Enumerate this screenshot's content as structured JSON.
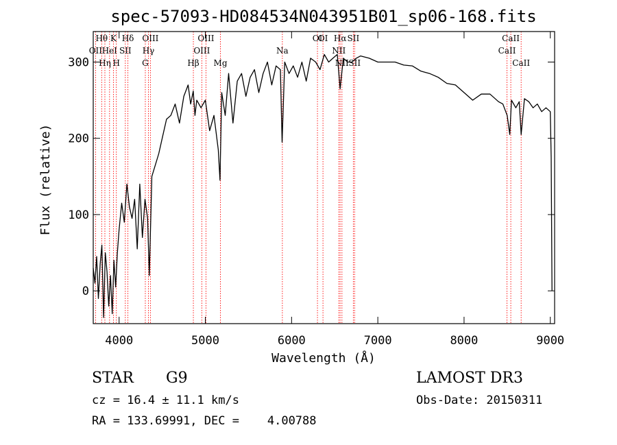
{
  "chart_data": {
    "type": "line",
    "title": "spec-57093-HD084534N043951B01_sp06-168.fits",
    "xlabel": "Wavelength (Å)",
    "ylabel": "Flux (relative)",
    "xlim": [
      3700,
      9050
    ],
    "ylim": [
      -43,
      340
    ],
    "x_ticks": [
      4000,
      5000,
      6000,
      7000,
      8000,
      9000
    ],
    "y_ticks": [
      0,
      100,
      200,
      300
    ],
    "grid": false,
    "series": [
      {
        "x": [
          3700,
          3720,
          3740,
          3760,
          3780,
          3800,
          3820,
          3840,
          3860,
          3880,
          3900,
          3920,
          3940,
          3960,
          3980,
          4000,
          4030,
          4060,
          4090,
          4120,
          4150,
          4180,
          4210,
          4240,
          4270,
          4300,
          4330,
          4350,
          4380,
          4420,
          4460,
          4500,
          4550,
          4600,
          4650,
          4700,
          4750,
          4800,
          4830,
          4860,
          4880,
          4900,
          4950,
          5000,
          5050,
          5100,
          5150,
          5170,
          5190,
          5230,
          5270,
          5320,
          5370,
          5420,
          5470,
          5520,
          5570,
          5620,
          5670,
          5720,
          5770,
          5820,
          5870,
          5890,
          5920,
          5970,
          6020,
          6070,
          6120,
          6170,
          6220,
          6280,
          6330,
          6380,
          6430,
          6480,
          6530,
          6563,
          6600,
          6650,
          6700,
          6750,
          6800,
          6900,
          7000,
          7100,
          7200,
          7300,
          7400,
          7500,
          7600,
          7700,
          7800,
          7900,
          8000,
          8100,
          8200,
          8300,
          8400,
          8450,
          8500,
          8530,
          8550,
          8600,
          8640,
          8662,
          8700,
          8750,
          8800,
          8850,
          8900,
          8950,
          9000,
          9010,
          9020
        ],
        "y": [
          30,
          10,
          45,
          -10,
          35,
          60,
          -35,
          50,
          25,
          -20,
          20,
          -30,
          40,
          5,
          50,
          80,
          115,
          90,
          140,
          110,
          95,
          120,
          55,
          140,
          70,
          120,
          95,
          20,
          150,
          165,
          180,
          200,
          225,
          230,
          245,
          220,
          255,
          270,
          245,
          262,
          230,
          250,
          240,
          250,
          210,
          230,
          185,
          145,
          260,
          230,
          285,
          220,
          275,
          285,
          255,
          280,
          290,
          260,
          285,
          300,
          270,
          295,
          290,
          195,
          300,
          285,
          295,
          280,
          300,
          275,
          305,
          300,
          290,
          310,
          300,
          305,
          310,
          265,
          305,
          300,
          300,
          305,
          308,
          305,
          300,
          300,
          300,
          296,
          295,
          288,
          285,
          280,
          272,
          270,
          260,
          250,
          258,
          258,
          248,
          245,
          230,
          205,
          250,
          240,
          248,
          205,
          252,
          248,
          240,
          245,
          235,
          240,
          235,
          175,
          0
        ],
        "stroke": "#000000"
      }
    ],
    "lines_color": "#ff0000",
    "spectral_lines": [
      {
        "label": "Hθ",
        "x": 3798,
        "row": 1
      },
      {
        "label": "OII",
        "x": 3727,
        "row": 2
      },
      {
        "label": "Hη",
        "x": 3835,
        "row": 3
      },
      {
        "label": "K",
        "x": 3934,
        "row": 1
      },
      {
        "label": "HeI",
        "x": 3889,
        "row": 2
      },
      {
        "label": "H",
        "x": 3968,
        "row": 3
      },
      {
        "label": "Hδ",
        "x": 4102,
        "row": 1
      },
      {
        "label": "SII",
        "x": 4072,
        "row": 2
      },
      {
        "label": "OIII",
        "x": 4363,
        "row": 1
      },
      {
        "label": "Hγ",
        "x": 4340,
        "row": 2
      },
      {
        "label": "G",
        "x": 4304,
        "row": 3
      },
      {
        "label": "Hβ",
        "x": 4861,
        "row": 3
      },
      {
        "label": "OIII",
        "x": 5007,
        "row": 1
      },
      {
        "label": "OIII",
        "x": 4959,
        "row": 2
      },
      {
        "label": "Mg",
        "x": 5175,
        "row": 3
      },
      {
        "label": "Na",
        "x": 5893,
        "row": 2
      },
      {
        "label": "OI",
        "x": 6300,
        "row": 1
      },
      {
        "label": "OI",
        "x": 6364,
        "row": 0
      },
      {
        "label": "Hα",
        "x": 6563,
        "row": 1
      },
      {
        "label": "NII",
        "x": 6548,
        "row": 2
      },
      {
        "label": "NII",
        "x": 6584,
        "row": 3
      },
      {
        "label": "SII",
        "x": 6716,
        "row": 1
      },
      {
        "label": "SII",
        "x": 6731,
        "row": 3
      },
      {
        "label": "CaII",
        "x": 8542,
        "row": 1
      },
      {
        "label": "CaII",
        "x": 8498,
        "row": 2
      },
      {
        "label": "CaII",
        "x": 8662,
        "row": 3
      }
    ]
  },
  "info": {
    "object_class": "STAR",
    "subclass": "G9",
    "survey": "LAMOST DR3",
    "cz": "cz = 16.4 ± 11.1 km/s",
    "obs_date": "Obs-Date: 20150311",
    "coords": "RA = 133.69991, DEC =    4.00788"
  }
}
